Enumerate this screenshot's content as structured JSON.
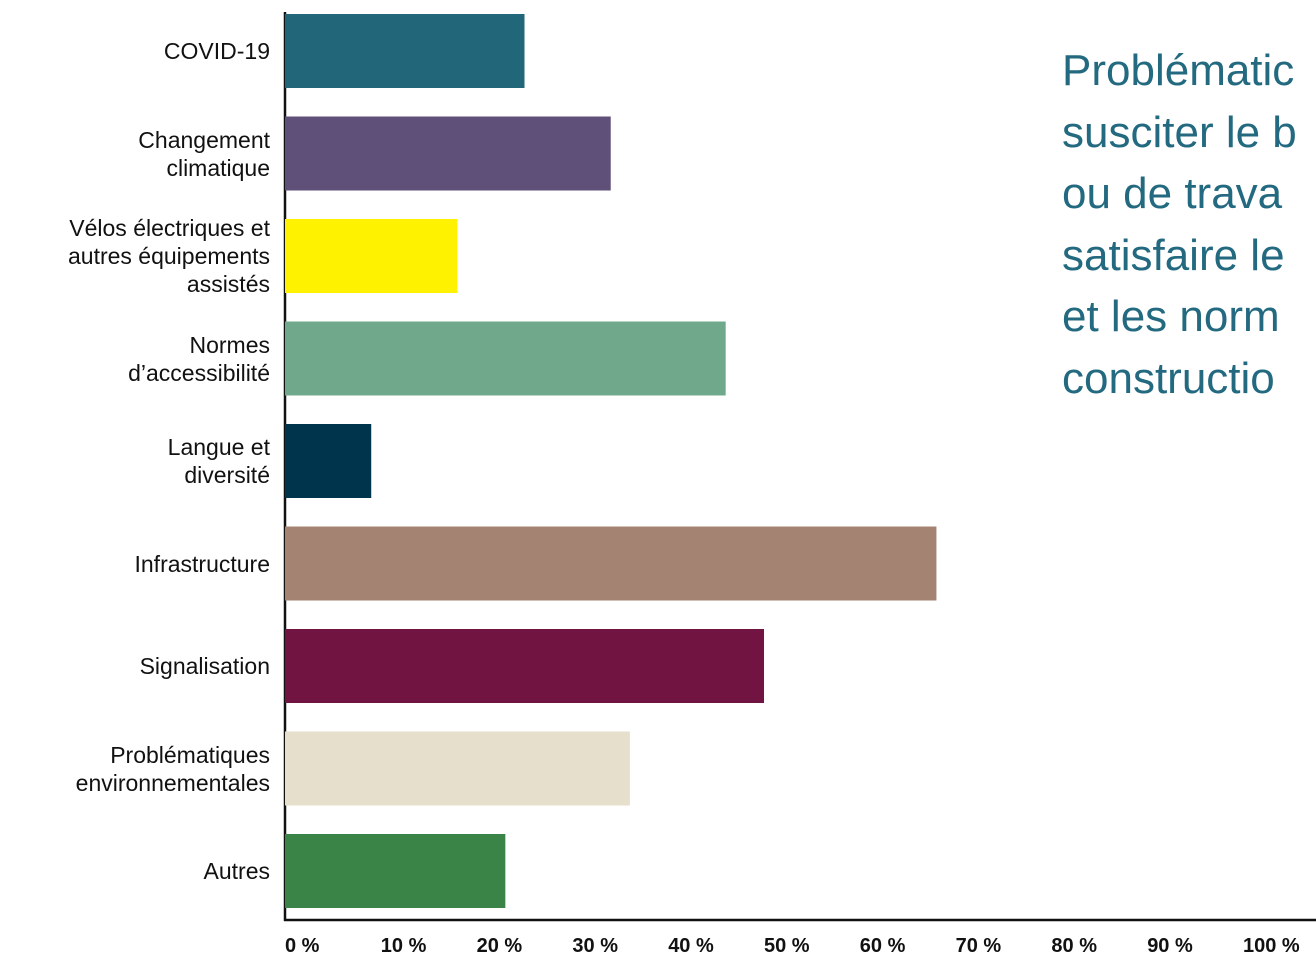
{
  "chart_data": {
    "type": "bar",
    "orientation": "horizontal",
    "categories": [
      "COVID-19",
      "Changement\nclimatique",
      "Vélos électriques et\nautres équipements\nassistés",
      "Normes\nd’accessibilité",
      "Langue et\ndiversité",
      "Infrastructure",
      "Signalisation",
      "Problématiques\nenvironnementales",
      "Autres"
    ],
    "values": [
      25,
      34,
      18,
      46,
      9,
      68,
      50,
      36,
      23
    ],
    "colors": [
      "#22667a",
      "#5f5079",
      "#fff200",
      "#6fa88b",
      "#00344c",
      "#a58373",
      "#711442",
      "#e5dfcc",
      "#3a8447"
    ],
    "xlim": [
      0,
      100
    ],
    "xticks": [
      {
        "value": 0,
        "label": "0 %"
      },
      {
        "value": 10,
        "label": "10 %"
      },
      {
        "value": 20,
        "label": "20 %"
      },
      {
        "value": 30,
        "label": "30 %"
      },
      {
        "value": 40,
        "label": "40 %"
      },
      {
        "value": 50,
        "label": "50 %"
      },
      {
        "value": 60,
        "label": "60 %"
      },
      {
        "value": 70,
        "label": "70 %"
      },
      {
        "value": 80,
        "label": "80 %"
      },
      {
        "value": 90,
        "label": "90 %"
      },
      {
        "value": 100,
        "label": "100 %"
      }
    ],
    "side_text": [
      "Problématic",
      "susciter le b",
      "ou de trava",
      "satisfaire le",
      "et les norm",
      "constructio"
    ]
  }
}
